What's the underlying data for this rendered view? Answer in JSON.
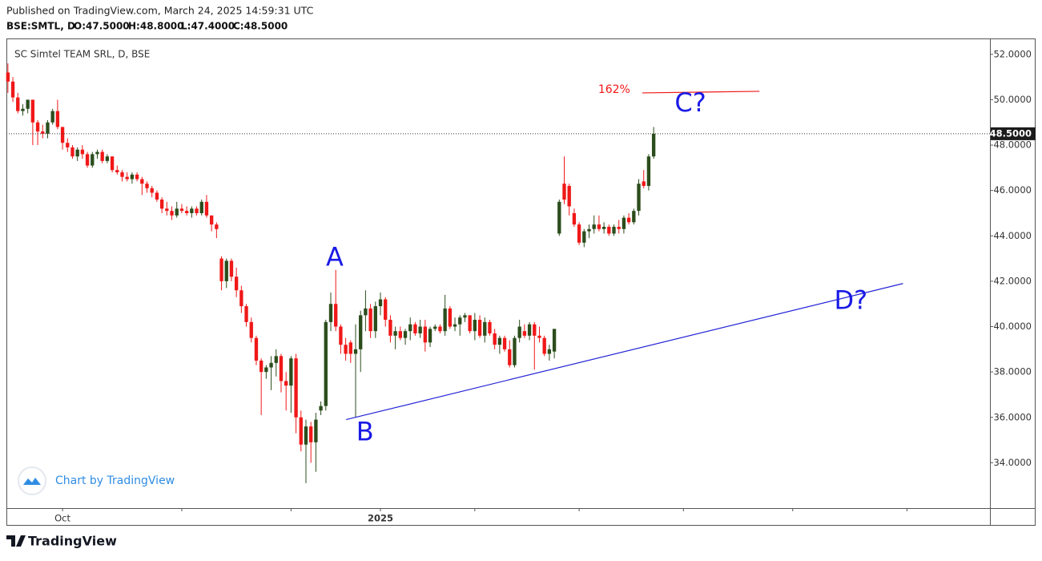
{
  "published": "Published on TradingView.com, March 24, 2025 14:59:31 UTC",
  "header": {
    "symbol": "BSE:SMTL, D",
    "ohlc": [
      "O:47.5000",
      "H:48.8000",
      "L:47.4000",
      "C:48.5000"
    ]
  },
  "watermark": "Chart by TradingView",
  "footer": "TradingView",
  "chart_data": {
    "type": "candlestick",
    "title": "SC Simtel TEAM SRL, D, BSE",
    "open": [
      51.2,
      50.8,
      50.1,
      49.5,
      49.6,
      50.0,
      49.0,
      48.6,
      48.5,
      49.0,
      49.5,
      48.8,
      48.1,
      47.9,
      47.5,
      47.8,
      47.6,
      47.1,
      47.6,
      47.7,
      47.3,
      47.5,
      46.9,
      46.8,
      46.6,
      46.5,
      46.7,
      46.5,
      46.3,
      46.1,
      45.9,
      45.6,
      45.2,
      45.1,
      44.9,
      45.2,
      45.1,
      45.0,
      45.2,
      45.0,
      45.5,
      44.9,
      44.5,
      43.0,
      42.0,
      42.9,
      42.2,
      41.6,
      40.9,
      40.2,
      39.5,
      38.5,
      38.0,
      38.2,
      38.4,
      38.7,
      37.6,
      37.4,
      38.6,
      36.0,
      34.8,
      35.6,
      34.9,
      36.3,
      36.5,
      40.2,
      41.0,
      40.0,
      39.2,
      39.3,
      38.8,
      39.0,
      40.5,
      40.8,
      39.8,
      40.9,
      41.2,
      40.3,
      39.6,
      39.8,
      39.5,
      39.8,
      40.1,
      39.7,
      40.0,
      39.3,
      39.9,
      40.0,
      39.8,
      40.8,
      40.0,
      40.1,
      40.4,
      40.5,
      39.8,
      40.3,
      39.6,
      40.2,
      39.7,
      39.2,
      39.5,
      39.0,
      38.3,
      39.5,
      39.8,
      39.6,
      40.1,
      39.6,
      39.5,
      38.8,
      38.9,
      44.1,
      46.3,
      46.2,
      45.0,
      44.5,
      43.7,
      44.2,
      44.3,
      44.5,
      44.3,
      44.4,
      44.1,
      44.4,
      44.3,
      44.8,
      44.6,
      45.1,
      46.4,
      46.2,
      47.5
    ],
    "high": [
      51.6,
      51.0,
      50.3,
      49.8,
      50.0,
      50.0,
      49.1,
      48.9,
      49.1,
      49.6,
      50.0,
      48.8,
      48.3,
      48.0,
      47.9,
      48.0,
      47.7,
      47.7,
      47.8,
      47.8,
      47.6,
      47.5,
      47.1,
      46.9,
      46.8,
      46.8,
      46.8,
      46.6,
      46.4,
      46.2,
      46.0,
      45.7,
      45.5,
      45.3,
      45.5,
      45.4,
      45.3,
      45.3,
      45.3,
      45.6,
      45.8,
      44.9,
      44.6,
      43.1,
      43.0,
      43.0,
      42.6,
      41.8,
      41.0,
      40.4,
      39.6,
      38.6,
      38.3,
      38.7,
      39.0,
      38.8,
      38.0,
      38.7,
      38.8,
      36.3,
      35.9,
      35.8,
      36.2,
      36.7,
      40.3,
      41.5,
      42.5,
      40.1,
      39.5,
      39.4,
      40.1,
      40.7,
      41.6,
      41.0,
      41.1,
      41.5,
      41.3,
      40.5,
      40.0,
      40.0,
      39.9,
      40.4,
      40.2,
      40.3,
      40.3,
      40.0,
      40.1,
      40.1,
      41.4,
      40.9,
      40.4,
      40.5,
      40.6,
      40.5,
      40.6,
      40.5,
      40.4,
      40.3,
      39.9,
      39.6,
      39.6,
      39.4,
      39.6,
      40.3,
      40.1,
      40.2,
      40.2,
      40.0,
      39.6,
      39.2,
      39.9,
      45.6,
      47.5,
      46.3,
      45.2,
      44.6,
      44.3,
      44.5,
      44.9,
      44.9,
      44.6,
      44.5,
      44.5,
      44.7,
      44.9,
      45.0,
      45.2,
      46.5,
      46.9,
      47.6,
      48.8
    ],
    "low": [
      50.3,
      49.9,
      49.4,
      49.3,
      49.4,
      48.0,
      48.0,
      48.3,
      48.3,
      48.9,
      48.7,
      47.8,
      47.7,
      47.4,
      47.3,
      47.4,
      47.0,
      47.0,
      47.4,
      47.2,
      47.2,
      46.8,
      46.7,
      46.4,
      46.4,
      46.3,
      46.4,
      45.8,
      45.9,
      45.7,
      45.5,
      45.0,
      44.9,
      44.7,
      44.8,
      45.0,
      44.9,
      44.8,
      44.9,
      44.9,
      44.8,
      44.2,
      43.9,
      41.6,
      41.7,
      42.0,
      41.3,
      40.6,
      40.0,
      39.3,
      38.3,
      36.1,
      37.7,
      37.2,
      37.8,
      37.1,
      36.3,
      36.2,
      35.3,
      34.5,
      33.1,
      34.0,
      33.6,
      36.1,
      36.3,
      39.8,
      39.8,
      38.8,
      38.5,
      38.4,
      36.0,
      38.0,
      39.8,
      39.5,
      39.5,
      40.5,
      40.0,
      39.3,
      39.0,
      39.4,
      39.2,
      39.4,
      39.6,
      39.5,
      38.9,
      39.1,
      39.8,
      39.7,
      39.6,
      39.9,
      39.8,
      39.6,
      40.2,
      39.7,
      39.4,
      39.5,
      39.3,
      39.6,
      39.0,
      38.8,
      38.9,
      38.2,
      38.2,
      39.3,
      39.5,
      39.4,
      38.1,
      39.3,
      38.7,
      38.5,
      38.6,
      44.0,
      45.4,
      44.9,
      44.4,
      43.6,
      43.5,
      43.9,
      44.1,
      44.2,
      44.1,
      44.0,
      44.0,
      44.1,
      44.1,
      44.5,
      44.5,
      44.9,
      46.1,
      46.0,
      47.4
    ],
    "close": [
      50.8,
      50.1,
      49.5,
      49.6,
      50.0,
      49.0,
      48.6,
      48.5,
      49.0,
      49.5,
      48.8,
      48.1,
      47.9,
      47.5,
      47.8,
      47.6,
      47.1,
      47.6,
      47.7,
      47.3,
      47.5,
      46.9,
      46.8,
      46.6,
      46.5,
      46.7,
      46.5,
      46.3,
      46.1,
      45.9,
      45.6,
      45.2,
      45.1,
      44.9,
      45.2,
      45.1,
      45.0,
      45.2,
      45.0,
      45.5,
      44.9,
      44.5,
      44.3,
      42.0,
      42.9,
      42.2,
      41.6,
      40.9,
      40.2,
      39.5,
      38.5,
      38.0,
      38.2,
      38.4,
      38.7,
      37.6,
      37.4,
      38.6,
      36.0,
      34.8,
      35.6,
      34.9,
      35.9,
      36.5,
      40.2,
      41.0,
      40.0,
      39.2,
      38.8,
      38.8,
      39.0,
      40.5,
      40.8,
      39.8,
      40.9,
      41.2,
      40.3,
      39.6,
      39.8,
      39.5,
      39.8,
      40.1,
      39.7,
      40.0,
      39.3,
      39.9,
      40.0,
      39.8,
      40.8,
      40.0,
      40.1,
      40.4,
      40.5,
      39.8,
      40.3,
      39.6,
      40.2,
      39.7,
      39.2,
      39.5,
      39.0,
      38.3,
      39.5,
      40.0,
      39.6,
      40.1,
      39.6,
      39.5,
      38.8,
      39.0,
      39.9,
      45.5,
      45.6,
      45.3,
      44.5,
      43.7,
      44.2,
      44.3,
      44.5,
      44.3,
      44.4,
      44.1,
      44.4,
      44.3,
      44.8,
      44.6,
      45.1,
      46.3,
      46.2,
      47.5,
      48.5
    ],
    "up_color": "#2b4d1c",
    "down_color": "#f01818",
    "xlim": [
      -0.3,
      197.7
    ],
    "ylim": [
      32.0,
      52.7
    ],
    "yticks": [
      {
        "value": 34,
        "label": "34.0000"
      },
      {
        "value": 36,
        "label": "36.0000"
      },
      {
        "value": 38,
        "label": "38.0000"
      },
      {
        "value": 40,
        "label": "40.0000"
      },
      {
        "value": 42,
        "label": "42.0000"
      },
      {
        "value": 44,
        "label": "44.0000"
      },
      {
        "value": 46,
        "label": "46.0000"
      },
      {
        "value": 48,
        "label": "48.0000"
      },
      {
        "value": 50,
        "label": "50.0000"
      },
      {
        "value": 52,
        "label": "52.0000"
      }
    ],
    "xticks": [
      {
        "value": 11,
        "label": "Oct"
      },
      {
        "value": 75,
        "label": "2025"
      }
    ],
    "xtick_marks": [
      35,
      57,
      94,
      115,
      136,
      158,
      181
    ],
    "last_price": {
      "value": 48.5,
      "label": "48.5000"
    },
    "annotations": [
      {
        "text": "A",
        "x": 65.8,
        "y": 43.0,
        "color": "#1a1ae6"
      },
      {
        "text": "B",
        "x": 71.9,
        "y": 35.3,
        "color": "#1a1ae6"
      },
      {
        "text": "C?",
        "x": 137.4,
        "y": 49.8,
        "color": "#1a1ae6"
      },
      {
        "text": "D?",
        "x": 169.7,
        "y": 41.1,
        "color": "#1a1ae6"
      }
    ],
    "lines": [
      {
        "x": [
          68.1,
          180.2
        ],
        "y": [
          35.9,
          41.9
        ],
        "color": "#2424d6"
      },
      {
        "x": [
          127.7,
          151.3
        ],
        "y": [
          50.3,
          50.37
        ],
        "color": "#f01818",
        "label": "162%"
      }
    ]
  }
}
